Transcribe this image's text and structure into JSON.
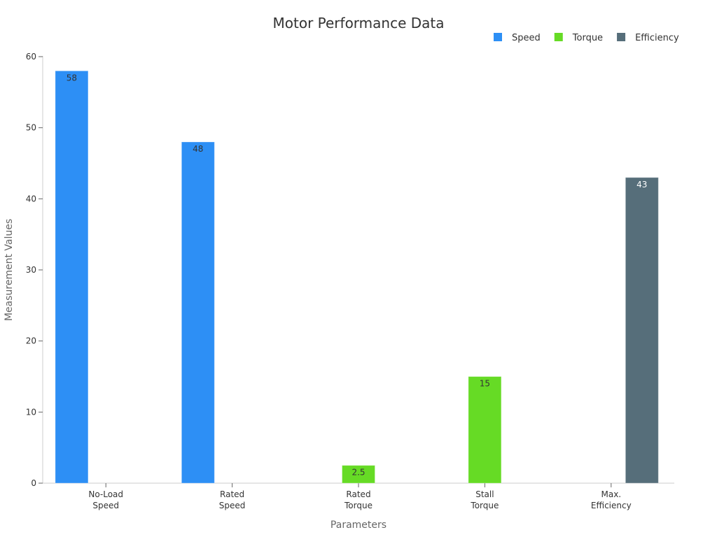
{
  "chart_data": {
    "type": "bar",
    "title": "Motor Performance Data",
    "xlabel": "Parameters",
    "ylabel": "Measurement Values",
    "ylim": [
      0,
      60
    ],
    "yticks": [
      0,
      10,
      20,
      30,
      40,
      50,
      60
    ],
    "grid": false,
    "legend_position": "top-right",
    "categories": [
      [
        "No-Load",
        "Speed"
      ],
      [
        "Rated",
        "Speed"
      ],
      [
        "Rated",
        "Torque"
      ],
      [
        "Stall",
        "Torque"
      ],
      [
        "Max.",
        "Efficiency"
      ]
    ],
    "series": [
      {
        "name": "Speed",
        "color": "#2d8ff5",
        "label_color": "#333333",
        "values": [
          58,
          48,
          null,
          null,
          null
        ]
      },
      {
        "name": "Torque",
        "color": "#66db25",
        "label_color": "#333333",
        "values": [
          null,
          null,
          2.5,
          15,
          null
        ]
      },
      {
        "name": "Efficiency",
        "color": "#566e7a",
        "label_color": "#ffffff",
        "values": [
          null,
          null,
          null,
          null,
          43
        ]
      }
    ]
  }
}
